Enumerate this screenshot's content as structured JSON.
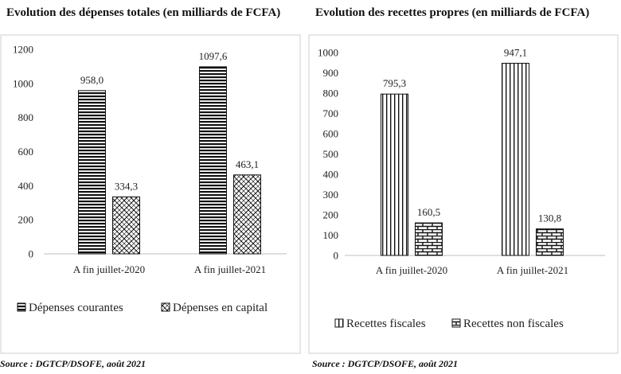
{
  "source_left": "Source : DGTCP/DSOFE, août 2021",
  "source_right": "Source : DGTCP/DSOFE, août 2021",
  "chart_data": [
    {
      "type": "bar",
      "title": "Evolution des dépenses totales (en milliards de FCFA)",
      "categories": [
        "A fin juillet-2020",
        "A fin juillet-2021"
      ],
      "series": [
        {
          "name": "Dépenses courantes",
          "values": [
            958.0,
            1097.6
          ],
          "labels": [
            "958,0",
            "1097,6"
          ],
          "pattern": "horizontal-stripes"
        },
        {
          "name": "Dépenses en capital",
          "values": [
            334.3,
            463.1
          ],
          "labels": [
            "334,3",
            "463,1"
          ],
          "pattern": "crosshatch"
        }
      ],
      "ylim": [
        0,
        1200
      ],
      "yticks": [
        0,
        200,
        400,
        600,
        800,
        1000,
        1200
      ],
      "grid": false,
      "legend": "bottom"
    },
    {
      "type": "bar",
      "title": "Evolution des recettes propres (en milliards de FCFA)",
      "categories": [
        "A fin juillet-2020",
        "A fin juillet-2021"
      ],
      "series": [
        {
          "name": "Recettes fiscales",
          "values": [
            795.3,
            947.1
          ],
          "labels": [
            "795,3",
            "947,1"
          ],
          "pattern": "vertical-stripes"
        },
        {
          "name": "Recettes non fiscales",
          "values": [
            160.5,
            130.8
          ],
          "labels": [
            "160,5",
            "130,8"
          ],
          "pattern": "brick"
        }
      ],
      "ylim": [
        0,
        1000
      ],
      "yticks": [
        0,
        100,
        200,
        300,
        400,
        500,
        600,
        700,
        800,
        900,
        1000
      ],
      "grid": false,
      "legend": "bottom"
    }
  ]
}
